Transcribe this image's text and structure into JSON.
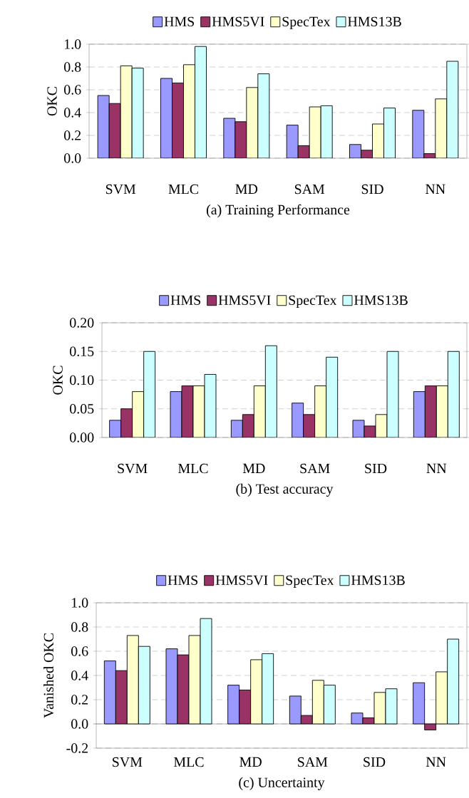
{
  "chart_data": [
    {
      "type": "bar",
      "title": "(a) Training Performance",
      "ylabel": "OKC",
      "categories": [
        "SVM",
        "MLC",
        "MD",
        "SAM",
        "SID",
        "NN"
      ],
      "series": [
        {
          "name": "HMS",
          "color": "#9999ff",
          "values": [
            0.55,
            0.7,
            0.35,
            0.29,
            0.12,
            0.42
          ]
        },
        {
          "name": "HMS5VI",
          "color": "#993366",
          "values": [
            0.48,
            0.66,
            0.32,
            0.11,
            0.07,
            0.04
          ]
        },
        {
          "name": "SpecTex",
          "color": "#ffffcc",
          "values": [
            0.81,
            0.82,
            0.62,
            0.45,
            0.3,
            0.52
          ]
        },
        {
          "name": "HMS13B",
          "color": "#ccffff",
          "values": [
            0.79,
            0.98,
            0.74,
            0.46,
            0.44,
            0.85
          ]
        }
      ],
      "ylim": [
        0,
        1
      ],
      "yticks": [
        {
          "value": 0,
          "label": "0.0"
        },
        0.2,
        0.4,
        0.6,
        0.8,
        {
          "value": 1,
          "label": "1.0"
        }
      ],
      "grid": "y",
      "legend": "top"
    },
    {
      "type": "bar",
      "title": "(b) Test accuracy",
      "ylabel": "OKC",
      "categories": [
        "SVM",
        "MLC",
        "MD",
        "SAM",
        "SID",
        "NN"
      ],
      "series": [
        {
          "name": "HMS",
          "color": "#9999ff",
          "values": [
            0.03,
            0.08,
            0.03,
            0.06,
            0.03,
            0.08
          ]
        },
        {
          "name": "HMS5VI",
          "color": "#993366",
          "values": [
            0.05,
            0.09,
            0.04,
            0.04,
            0.02,
            0.09
          ]
        },
        {
          "name": "SpecTex",
          "color": "#ffffcc",
          "values": [
            0.08,
            0.09,
            0.09,
            0.09,
            0.04,
            0.09
          ]
        },
        {
          "name": "HMS13B",
          "color": "#ccffff",
          "values": [
            0.15,
            0.11,
            0.16,
            0.14,
            0.15,
            0.15
          ]
        }
      ],
      "ylim": [
        0,
        0.2
      ],
      "yticks": [
        {
          "value": 0,
          "label": "0.00"
        },
        0.05,
        {
          "value": 0.1,
          "label": "0.10"
        },
        0.15,
        {
          "value": 0.2,
          "label": "0.20"
        }
      ],
      "grid": "y",
      "legend": "top"
    },
    {
      "type": "bar",
      "title": "(c) Uncertainty",
      "ylabel": "Vanished OKC",
      "categories": [
        "SVM",
        "MLC",
        "MD",
        "SAM",
        "SID",
        "NN"
      ],
      "series": [
        {
          "name": "HMS",
          "color": "#9999ff",
          "values": [
            0.52,
            0.62,
            0.32,
            0.23,
            0.09,
            0.34
          ]
        },
        {
          "name": "HMS5VI",
          "color": "#993366",
          "values": [
            0.44,
            0.57,
            0.28,
            0.07,
            0.05,
            -0.05
          ]
        },
        {
          "name": "SpecTex",
          "color": "#ffffcc",
          "values": [
            0.73,
            0.73,
            0.53,
            0.36,
            0.26,
            0.43
          ]
        },
        {
          "name": "HMS13B",
          "color": "#ccffff",
          "values": [
            0.64,
            0.87,
            0.58,
            0.32,
            0.29,
            0.7
          ]
        }
      ],
      "ylim": [
        -0.2,
        1
      ],
      "yticks": [
        {
          "value": -0.2,
          "label": "-0.2"
        },
        {
          "value": 0,
          "label": "0.0"
        },
        0.2,
        0.4,
        0.6,
        0.8,
        {
          "value": 1,
          "label": "1.0"
        }
      ],
      "grid": "y",
      "legend": "top"
    }
  ]
}
